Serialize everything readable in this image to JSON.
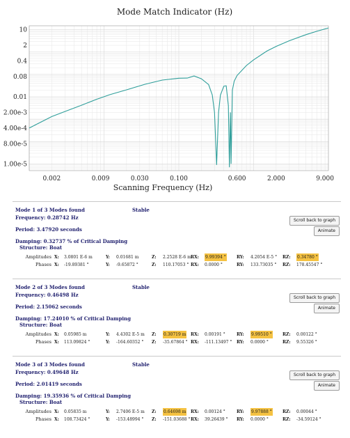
{
  "chart_data": {
    "type": "line",
    "title": "Mode Match Indicator (Hz)",
    "xlabel": "Scanning Frequency (Hz)",
    "ylabel": "",
    "x_scale": "log",
    "y_scale": "log",
    "xlim": [
      0.001,
      10
    ],
    "ylim": [
      5e-06,
      15
    ],
    "x_tick_labels": [
      "0.002",
      "0.009",
      "0.030",
      "0.100",
      "0.600",
      "2.000",
      "9.000"
    ],
    "x_ticks": [
      0.002,
      0.009,
      0.03,
      0.1,
      0.6,
      2.0,
      9.0
    ],
    "y_tick_labels": [
      "10",
      "2",
      "0.4",
      "0.08",
      "0.01",
      "2.00e-3",
      "4.00e-4",
      "8.00e-5",
      "1.00e-5"
    ],
    "y_ticks": [
      10,
      2,
      0.4,
      0.08,
      0.01,
      0.002,
      0.0004,
      8e-05,
      1e-05
    ],
    "grid": true,
    "line_color": "#2e9e9a",
    "series": [
      {
        "x": [
          0.001,
          0.0015,
          0.002,
          0.003,
          0.005,
          0.008,
          0.012,
          0.02,
          0.035,
          0.06,
          0.1,
          0.13,
          0.16,
          0.2,
          0.25,
          0.28,
          0.3,
          0.32,
          0.34,
          0.36,
          0.4,
          0.43,
          0.46,
          0.475,
          0.49,
          0.5,
          0.52,
          0.55,
          0.6,
          0.8,
          1.0,
          1.5,
          2.0,
          3.0,
          5.0,
          7.0,
          10.0
        ],
        "y": [
          0.0004,
          0.0008,
          0.0013,
          0.0022,
          0.0042,
          0.0078,
          0.0125,
          0.0205,
          0.036,
          0.056,
          0.068,
          0.069,
          0.085,
          0.064,
          0.035,
          0.012,
          0.002,
          9e-06,
          0.002,
          0.012,
          0.03,
          0.031,
          0.004,
          7e-06,
          0.002,
          1e-05,
          0.02,
          0.05,
          0.09,
          0.25,
          0.45,
          1.1,
          1.8,
          3.2,
          6.0,
          8.5,
          12.0
        ]
      }
    ]
  },
  "modes": [
    {
      "title": "Mode 1 of 3 Modes found",
      "status": "Stable",
      "frequency": "Frequency: 0.28742 Hz",
      "period": "Period: 3.47920 seconds",
      "damping": "Damping: 0.32737 % of Critical Damping",
      "structure": "Structure: Boat",
      "scroll_label": "Scroll back to graph",
      "animate_label": "Animate",
      "amplitudes": {
        "name": "Amplitudes",
        "x": "3.0801 E-6 m",
        "y": "0.01681 m",
        "z": "2.2528 E-6 m",
        "rx": "9.99394 °",
        "ry": "4.2054 E-5 °",
        "rz": "0.34780 °"
      },
      "phases": {
        "name": "Phases",
        "x": "-19.89381 °",
        "y": "-9.65872 °",
        "z": "110.17053 °",
        "rx": "0.0000 °",
        "ry": "133.73035 °",
        "rz": "178.45547 °"
      },
      "highlight": [
        "rx",
        "rz"
      ]
    },
    {
      "title": "Mode 2 of 3 Modes found",
      "status": "Stable",
      "frequency": "Frequency: 0.46498 Hz",
      "period": "Period: 2.15062 seconds",
      "damping": "Damping: 17.24010 % of Critical Damping",
      "structure": "Structure: Boat",
      "scroll_label": "Scroll back to graph",
      "animate_label": "Animate",
      "amplitudes": {
        "name": "Amplitudes",
        "x": "0.05985 m",
        "y": "4.4302 E-5 m",
        "z": "0.30719 m",
        "rx": "0.00191 °",
        "ry": "9.99510 °",
        "rz": "0.00122 °"
      },
      "phases": {
        "name": "Phases",
        "x": "113.09824 °",
        "y": "-164.60352 °",
        "z": "-35.67864 °",
        "rx": "-111.13497 °",
        "ry": "0.0000 °",
        "rz": "9.55326 °"
      },
      "highlight": [
        "z",
        "ry"
      ]
    },
    {
      "title": "Mode 3 of 3 Modes found",
      "status": "Stable",
      "frequency": "Frequency: 0.49648 Hz",
      "period": "Period: 2.01419 seconds",
      "damping": "Damping: 19.35936 % of Critical Damping",
      "structure": "Structure: Boat",
      "scroll_label": "Scroll back to graph",
      "animate_label": "Animate",
      "amplitudes": {
        "name": "Amplitudes",
        "x": "0.05835 m",
        "y": "2.7406 E-5 m",
        "z": "0.64698 m",
        "rx": "0.00124 °",
        "ry": "9.97888 °",
        "rz": "0.00044 °"
      },
      "phases": {
        "name": "Phases",
        "x": "108.73424 °",
        "y": "-153.48994 °",
        "z": "-151.03688 °",
        "rx": "39.26439 °",
        "ry": "0.0000 °",
        "rz": "-34.59124 °"
      },
      "highlight": [
        "z",
        "ry"
      ]
    }
  ],
  "axis_labels": {
    "x": "X:",
    "y": "Y:",
    "z": "Z:",
    "rx": "RX:",
    "ry": "RY:",
    "rz": "RZ:"
  },
  "highlight_color": "#f5c242"
}
